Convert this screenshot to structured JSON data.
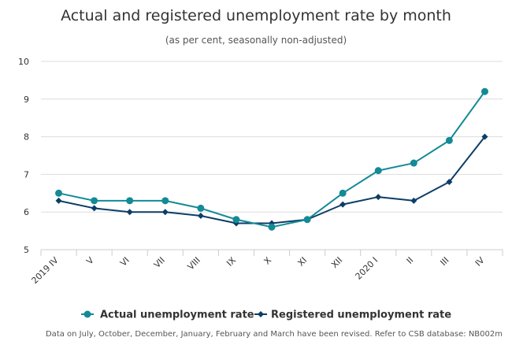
{
  "chart_data": {
    "type": "line",
    "title": "Actual and registered unemployment rate by month",
    "subtitle": "(as per cent, seasonally non-adjusted)",
    "categories": [
      "2019 IV",
      "V",
      "VI",
      "VII",
      "VIII",
      "IX",
      "X",
      "XI",
      "XII",
      "2020 I",
      "II",
      "III",
      "IV"
    ],
    "ylim": [
      5,
      10
    ],
    "yticks": [
      "5",
      "6",
      "7",
      "8",
      "9",
      "10"
    ],
    "grid": true,
    "legend_position": "bottom",
    "series": [
      {
        "name": "Actual unemployment rate",
        "color": "#138a96",
        "marker": "circle",
        "values": [
          6.5,
          6.3,
          6.3,
          6.3,
          6.1,
          5.8,
          5.6,
          5.8,
          6.5,
          7.1,
          7.3,
          7.9,
          9.2
        ]
      },
      {
        "name": "Registered unemployment rate",
        "color": "#0c3d66",
        "marker": "diamond",
        "values": [
          6.3,
          6.1,
          6.0,
          6.0,
          5.9,
          5.7,
          5.7,
          5.8,
          6.2,
          6.4,
          6.3,
          6.8,
          8.0
        ]
      }
    ],
    "footnote": "Data on July, October, December, January, February and March have been revised. Refer to CSB database: NB002m"
  }
}
